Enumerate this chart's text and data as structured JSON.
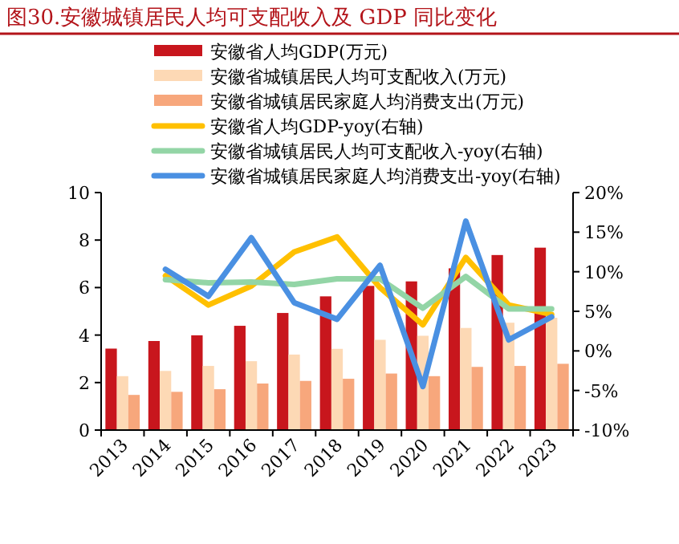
{
  "chart_data": {
    "type": "bar",
    "title": "图30.安徽城镇居民人均可支配收入及 GDP 同比变化",
    "categories": [
      "2013",
      "2014",
      "2015",
      "2016",
      "2017",
      "2018",
      "2019",
      "2020",
      "2021",
      "2022",
      "2023"
    ],
    "series": [
      {
        "name": "安徽省人均GDP(万元)",
        "color": "#c8161d",
        "values": [
          3.43,
          3.75,
          3.99,
          4.39,
          4.93,
          5.63,
          6.07,
          6.26,
          6.81,
          7.37,
          7.68
        ]
      },
      {
        "name": "安徽省城镇居民人均可支配收入(万元)",
        "color": "#fdd9b5",
        "values": [
          2.27,
          2.49,
          2.7,
          2.9,
          3.18,
          3.42,
          3.8,
          3.97,
          4.3,
          4.52,
          4.73
        ]
      },
      {
        "name": "安徽省城镇居民家庭人均消费支出(万元)",
        "color": "#f7a77c",
        "values": [
          1.48,
          1.61,
          1.72,
          1.96,
          2.07,
          2.16,
          2.38,
          2.27,
          2.66,
          2.7,
          2.79
        ]
      },
      {
        "name": "安徽省人均GDP-yoy(右轴)",
        "type": "line",
        "axis": "y2",
        "color": "#ffc000",
        "values": [
          null,
          9.5,
          5.8,
          8.2,
          12.5,
          14.4,
          8.0,
          3.3,
          11.8,
          5.8,
          4.6
        ]
      },
      {
        "name": "安徽省城镇居民人均可支配收入-yoy(右轴)",
        "type": "line",
        "axis": "y2",
        "color": "#93d5a6",
        "values": [
          null,
          9.0,
          8.6,
          8.7,
          8.4,
          9.1,
          9.1,
          5.4,
          9.4,
          5.3,
          5.3
        ]
      },
      {
        "name": "安徽省城镇居民家庭人均消费支出-yoy(右轴)",
        "type": "line",
        "axis": "y2",
        "color": "#4a90e2",
        "values": [
          null,
          10.3,
          6.9,
          14.3,
          6.1,
          4.0,
          10.8,
          -4.5,
          16.4,
          1.4,
          4.3
        ]
      }
    ],
    "ylim": [
      0,
      10
    ],
    "yticks": [
      0,
      2,
      4,
      6,
      8,
      10
    ],
    "y2lim": [
      -10,
      20
    ],
    "y2ticks": [
      {
        "value": -10,
        "label": "-10%"
      },
      {
        "value": -5,
        "label": "-5%"
      },
      {
        "value": 0,
        "label": "0%"
      },
      {
        "value": 5,
        "label": "5%"
      },
      {
        "value": 10,
        "label": "10%"
      },
      {
        "value": 15,
        "label": "15%"
      },
      {
        "value": 20,
        "label": "20%"
      }
    ],
    "legend": "top",
    "grid": false
  }
}
